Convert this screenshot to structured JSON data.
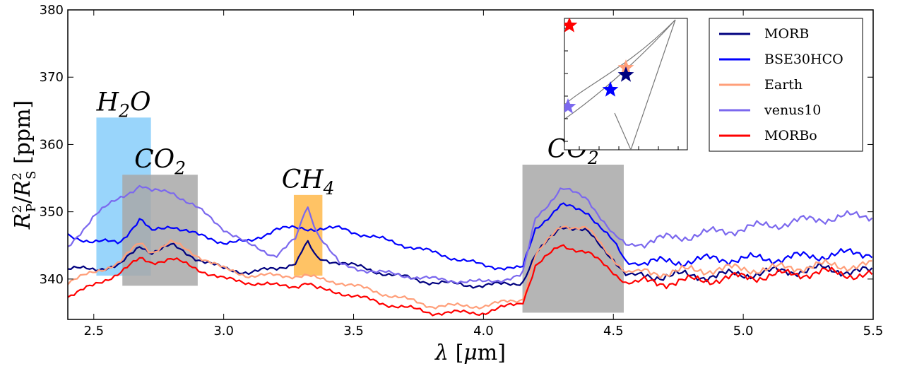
{
  "chart_data": {
    "type": "line",
    "xlabel": "λ [μm]",
    "ylabel": "R_P^2 / R_S^2 [ppm]",
    "xlim": [
      2.4,
      5.5
    ],
    "ylim": [
      334,
      380
    ],
    "x_ticks": [
      "2.5",
      "3.0",
      "3.5",
      "4.0",
      "4.5",
      "5.0",
      "5.5"
    ],
    "y_ticks": [
      "340",
      "350",
      "360",
      "370",
      "380"
    ],
    "x": [
      2.4,
      2.5,
      2.6,
      2.68,
      2.72,
      2.8,
      2.9,
      3.0,
      3.1,
      3.2,
      3.28,
      3.32,
      3.36,
      3.45,
      3.6,
      3.8,
      4.0,
      4.15,
      4.2,
      4.3,
      4.4,
      4.5,
      4.55,
      4.7,
      4.9,
      5.1,
      5.3,
      5.5
    ],
    "series": [
      {
        "name": "MORB",
        "color": "#00007f",
        "values": [
          341.5,
          341.5,
          342,
          345,
          344,
          345,
          343,
          341.5,
          341,
          341.5,
          342.5,
          345.5,
          343,
          342.5,
          341,
          339.5,
          339,
          339.5,
          343.5,
          348,
          347,
          343,
          340.5,
          340.5,
          340.5,
          341,
          341.5,
          341
        ]
      },
      {
        "name": "BSE30HCO",
        "color": "#0000ff",
        "values": [
          346.5,
          345.5,
          345.5,
          349,
          347,
          348,
          346.5,
          345.5,
          345.5,
          347.5,
          347.5,
          347.5,
          347.5,
          347.5,
          346,
          344,
          342,
          341.5,
          347.5,
          351,
          350,
          345.5,
          342.5,
          342.5,
          343,
          343,
          343.5,
          344
        ]
      },
      {
        "name": "Earth",
        "color": "#ff9f7a",
        "values": [
          339.5,
          341,
          342.5,
          345.5,
          344,
          345.5,
          343.5,
          341.5,
          340.5,
          340.5,
          340.5,
          340.5,
          340,
          339.5,
          338,
          336,
          336,
          337,
          343.5,
          348,
          347.5,
          343,
          341,
          341,
          341.5,
          341.5,
          342,
          342
        ]
      },
      {
        "name": "venus10",
        "color": "#7b68ee",
        "values": [
          344.5,
          349.5,
          352,
          354,
          353,
          353,
          350.5,
          347.5,
          345,
          343.5,
          346,
          351,
          347,
          342,
          341,
          340,
          339.5,
          340.5,
          349,
          353.5,
          352,
          346.5,
          345,
          346,
          347,
          348,
          349,
          349.5
        ]
      },
      {
        "name": "MORBo",
        "color": "#ff0000",
        "values": [
          337.5,
          339,
          341,
          343,
          342.5,
          343,
          341.5,
          340,
          339.5,
          339,
          339,
          339.5,
          338.5,
          338,
          336.5,
          335,
          335,
          336.5,
          342,
          345,
          344,
          341,
          339.5,
          339.5,
          340,
          340.5,
          341,
          340.5
        ]
      }
    ],
    "annotations": [
      {
        "label": "H",
        "sub": "2",
        "tail": "O",
        "x_range": [
          2.51,
          2.72
        ],
        "y_range": [
          340.5,
          364
        ],
        "color": "#87cefa"
      },
      {
        "label": "CO",
        "sub": "2",
        "tail": "",
        "x_range": [
          2.61,
          2.9
        ],
        "y_range": [
          339,
          355.5
        ],
        "color": "#a8a8a8"
      },
      {
        "label": "CH",
        "sub": "4",
        "tail": "",
        "x_range": [
          3.27,
          3.38
        ],
        "y_range": [
          340.5,
          352.5
        ],
        "color": "#ffb84a"
      },
      {
        "label": "CO",
        "sub": "2",
        "tail": "",
        "x_range": [
          4.15,
          4.54
        ],
        "y_range": [
          335,
          357
        ],
        "color": "#a8a8a8"
      }
    ],
    "legend": {
      "position": "top-right"
    },
    "inset": {
      "description": "ternary composition inset with star markers",
      "markers": [
        {
          "name": "MORBo",
          "color": "#ff0000"
        },
        {
          "name": "Earth",
          "color": "#ff9f7a"
        },
        {
          "name": "MORB",
          "color": "#00007f"
        },
        {
          "name": "BSE30HCO",
          "color": "#0000ff"
        },
        {
          "name": "venus10",
          "color": "#7b68ee"
        }
      ]
    }
  }
}
